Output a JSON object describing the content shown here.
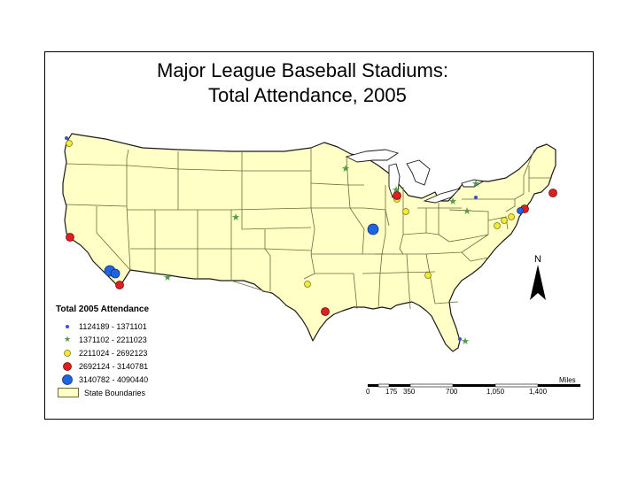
{
  "title_line1": "Major League Baseball Stadiums:",
  "title_line2": "Total Attendance, 2005",
  "legend": {
    "title": "Total 2005 Attendance",
    "classes": [
      {
        "label": "1124189 - 1371101",
        "color": "#3a4fd0",
        "symbol": "small-dot"
      },
      {
        "label": "1371102 - 2211023",
        "color": "#4f9a4f",
        "symbol": "star"
      },
      {
        "label": "2211024 - 2692123",
        "color": "#f2e93a",
        "symbol": "medium-circle"
      },
      {
        "label": "2692124 - 3140781",
        "color": "#dd1f1f",
        "symbol": "large-circle"
      },
      {
        "label": "3140782 - 4090440",
        "color": "#1f64e0",
        "symbol": "xlarge-circle"
      }
    ],
    "boundary_label": "State Boundaries"
  },
  "scale": {
    "units": "Miles",
    "ticks": [
      "0",
      "175",
      "350",
      "700",
      "1,050",
      "1,400"
    ],
    "tick_values": [
      0,
      175,
      350,
      700,
      1050,
      1400
    ]
  },
  "north_label": "N",
  "colors": {
    "land": "#ffffc6",
    "state_lines": "#6b6b3c",
    "coast": "#1a1a1a"
  }
}
